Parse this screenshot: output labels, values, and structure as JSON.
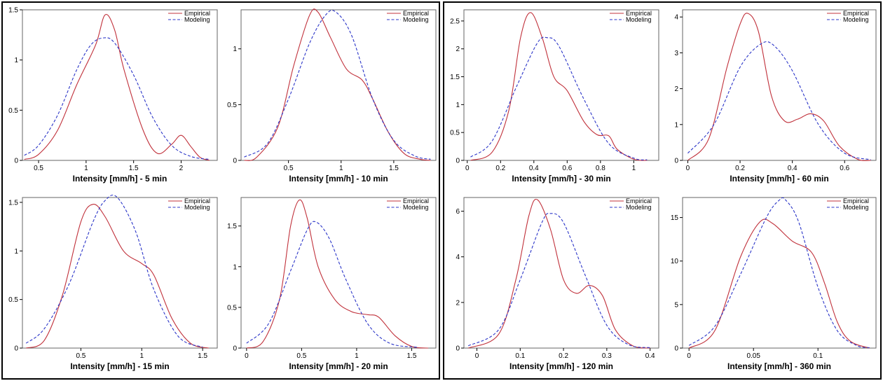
{
  "colors": {
    "empirical": "#c0303a",
    "modeling": "#2b35c8"
  },
  "chart_data": [
    {
      "type": "line",
      "xlabel": "Intensity [mm/h] - 5 min",
      "xlim": [
        0.33,
        2.38
      ],
      "ylim": [
        0,
        1.5
      ],
      "xticks": [
        0.5,
        1,
        1.5,
        2
      ],
      "xtick_labels": [
        "0.5",
        "1",
        "1.5",
        "2"
      ],
      "yticks": [
        0,
        0.5,
        1,
        1.5
      ],
      "ytick_labels": [
        "0",
        "0.5",
        "1",
        "1.5"
      ],
      "series": [
        {
          "name": "Empirical",
          "x": [
            0.35,
            0.5,
            0.7,
            0.9,
            1.1,
            1.2,
            1.3,
            1.4,
            1.6,
            1.75,
            1.9,
            2.0,
            2.1,
            2.2,
            2.3
          ],
          "y": [
            0.01,
            0.06,
            0.3,
            0.75,
            1.15,
            1.45,
            1.3,
            0.9,
            0.3,
            0.07,
            0.16,
            0.25,
            0.14,
            0.03,
            0.0
          ]
        },
        {
          "name": "Modeling",
          "x": [
            0.35,
            0.5,
            0.7,
            0.9,
            1.05,
            1.18,
            1.3,
            1.5,
            1.7,
            1.9,
            2.1,
            2.3
          ],
          "y": [
            0.05,
            0.15,
            0.45,
            0.9,
            1.15,
            1.22,
            1.17,
            0.85,
            0.43,
            0.15,
            0.04,
            0.01
          ]
        }
      ]
    },
    {
      "type": "line",
      "xlabel": "Intensity [mm/h] - 10 min",
      "xlim": [
        0.05,
        1.9
      ],
      "ylim": [
        0,
        1.35
      ],
      "xticks": [
        0.5,
        1,
        1.5
      ],
      "xtick_labels": [
        "0.5",
        "1",
        "1.5"
      ],
      "yticks": [
        0,
        0.5,
        1
      ],
      "ytick_labels": [
        "0",
        "0.5",
        "1"
      ],
      "series": [
        {
          "name": "Empirical",
          "x": [
            0.08,
            0.2,
            0.4,
            0.55,
            0.7,
            0.78,
            0.9,
            1.05,
            1.2,
            1.3,
            1.45,
            1.6,
            1.75,
            1.85
          ],
          "y": [
            0.0,
            0.03,
            0.3,
            0.85,
            1.3,
            1.33,
            1.1,
            0.82,
            0.72,
            0.55,
            0.25,
            0.06,
            0.01,
            0.0
          ]
        },
        {
          "name": "Modeling",
          "x": [
            0.08,
            0.3,
            0.5,
            0.7,
            0.85,
            0.95,
            1.1,
            1.3,
            1.5,
            1.7,
            1.85
          ],
          "y": [
            0.03,
            0.15,
            0.55,
            1.05,
            1.3,
            1.33,
            1.12,
            0.55,
            0.18,
            0.04,
            0.01
          ]
        }
      ]
    },
    {
      "type": "line",
      "xlabel": "Intensity [mm/h] - 15 min",
      "xlim": [
        0.02,
        1.62
      ],
      "ylim": [
        0,
        1.55
      ],
      "xticks": [
        0.5,
        1,
        1.5
      ],
      "xtick_labels": [
        "0.5",
        "1",
        "1.5"
      ],
      "yticks": [
        0,
        0.5,
        1,
        1.5
      ],
      "ytick_labels": [
        "0",
        "0.5",
        "1",
        "1.5"
      ],
      "series": [
        {
          "name": "Empirical",
          "x": [
            0.05,
            0.2,
            0.35,
            0.5,
            0.6,
            0.7,
            0.85,
            1.0,
            1.1,
            1.25,
            1.4,
            1.55
          ],
          "y": [
            0.0,
            0.08,
            0.55,
            1.3,
            1.48,
            1.35,
            1.0,
            0.87,
            0.75,
            0.3,
            0.05,
            0.0
          ]
        },
        {
          "name": "Modeling",
          "x": [
            0.05,
            0.2,
            0.4,
            0.6,
            0.7,
            0.8,
            0.95,
            1.1,
            1.3,
            1.5
          ],
          "y": [
            0.05,
            0.2,
            0.65,
            1.3,
            1.52,
            1.55,
            1.2,
            0.6,
            0.12,
            0.01
          ]
        }
      ]
    },
    {
      "type": "line",
      "xlabel": "Intensity [mm/h] - 20 min",
      "xlim": [
        -0.05,
        1.72
      ],
      "ylim": [
        0,
        1.85
      ],
      "xticks": [
        0,
        0.5,
        1,
        1.5
      ],
      "xtick_labels": [
        "0",
        "0.5",
        "1",
        "1.5"
      ],
      "yticks": [
        0,
        0.5,
        1,
        1.5
      ],
      "ytick_labels": [
        "0",
        "0.5",
        "1",
        "1.5"
      ],
      "series": [
        {
          "name": "Empirical",
          "x": [
            0.0,
            0.15,
            0.3,
            0.4,
            0.48,
            0.55,
            0.65,
            0.8,
            0.95,
            1.1,
            1.2,
            1.35,
            1.5,
            1.65
          ],
          "y": [
            0.0,
            0.08,
            0.6,
            1.5,
            1.82,
            1.6,
            1.0,
            0.6,
            0.45,
            0.41,
            0.38,
            0.15,
            0.02,
            0.0
          ]
        },
        {
          "name": "Modeling",
          "x": [
            0.0,
            0.2,
            0.4,
            0.55,
            0.63,
            0.75,
            0.9,
            1.1,
            1.3,
            1.55
          ],
          "y": [
            0.06,
            0.3,
            0.95,
            1.45,
            1.55,
            1.35,
            0.85,
            0.3,
            0.06,
            0.01
          ]
        }
      ]
    },
    {
      "type": "line",
      "xlabel": "Intensity [mm/h] - 30 min",
      "xlim": [
        -0.02,
        1.15
      ],
      "ylim": [
        0,
        2.7
      ],
      "xticks": [
        0,
        0.2,
        0.4,
        0.6,
        0.8,
        1
      ],
      "xtick_labels": [
        "0",
        "0.2",
        "0.4",
        "0.6",
        "0.8",
        "1"
      ],
      "yticks": [
        0,
        0.5,
        1,
        1.5,
        2,
        2.5
      ],
      "ytick_labels": [
        "0",
        "0.5",
        "1",
        "1.5",
        "2",
        "2.5"
      ],
      "series": [
        {
          "name": "Empirical",
          "x": [
            0.02,
            0.15,
            0.25,
            0.32,
            0.38,
            0.45,
            0.52,
            0.6,
            0.7,
            0.78,
            0.85,
            0.9,
            1.0,
            1.08
          ],
          "y": [
            0.0,
            0.15,
            0.9,
            2.2,
            2.65,
            2.2,
            1.5,
            1.25,
            0.7,
            0.46,
            0.44,
            0.2,
            0.02,
            0.0
          ]
        },
        {
          "name": "Modeling",
          "x": [
            0.02,
            0.15,
            0.3,
            0.42,
            0.48,
            0.55,
            0.7,
            0.85,
            1.0,
            1.08
          ],
          "y": [
            0.06,
            0.35,
            1.35,
            2.1,
            2.2,
            2.05,
            1.1,
            0.3,
            0.04,
            0.01
          ]
        }
      ]
    },
    {
      "type": "line",
      "xlabel": "Intensity [mm/h] - 60 min",
      "xlim": [
        -0.02,
        0.72
      ],
      "ylim": [
        0,
        4.2
      ],
      "xticks": [
        0,
        0.2,
        0.4,
        0.6
      ],
      "xtick_labels": [
        "0",
        "0.2",
        "0.4",
        "0.6"
      ],
      "yticks": [
        0,
        1,
        2,
        3,
        4
      ],
      "ytick_labels": [
        "0",
        "1",
        "2",
        "3",
        "4"
      ],
      "series": [
        {
          "name": "Empirical",
          "x": [
            0.0,
            0.08,
            0.15,
            0.2,
            0.23,
            0.27,
            0.32,
            0.37,
            0.42,
            0.47,
            0.52,
            0.58,
            0.65,
            0.7
          ],
          "y": [
            0.0,
            0.6,
            2.6,
            3.8,
            4.1,
            3.6,
            1.8,
            1.1,
            1.15,
            1.3,
            1.1,
            0.4,
            0.03,
            0.0
          ]
        },
        {
          "name": "Modeling",
          "x": [
            0.0,
            0.1,
            0.2,
            0.28,
            0.33,
            0.4,
            0.5,
            0.6,
            0.7
          ],
          "y": [
            0.2,
            1.0,
            2.6,
            3.25,
            3.2,
            2.5,
            1.0,
            0.2,
            0.02
          ]
        }
      ]
    },
    {
      "type": "line",
      "xlabel": "Intensity [mm/h] - 120 min",
      "xlim": [
        -0.03,
        0.42
      ],
      "ylim": [
        0,
        6.6
      ],
      "xticks": [
        0,
        0.1,
        0.2,
        0.3,
        0.4
      ],
      "xtick_labels": [
        "0",
        "0.1",
        "0.2",
        "0.3",
        "0.4"
      ],
      "yticks": [
        0,
        2,
        4,
        6
      ],
      "ytick_labels": [
        "0",
        "2",
        "4",
        "6"
      ],
      "series": [
        {
          "name": "Empirical",
          "x": [
            -0.02,
            0.05,
            0.09,
            0.12,
            0.14,
            0.17,
            0.2,
            0.23,
            0.26,
            0.29,
            0.32,
            0.36,
            0.4
          ],
          "y": [
            0.0,
            0.6,
            3.0,
            5.8,
            6.5,
            5.2,
            3.0,
            2.4,
            2.75,
            2.3,
            0.8,
            0.1,
            0.0
          ]
        },
        {
          "name": "Modeling",
          "x": [
            -0.02,
            0.05,
            0.1,
            0.15,
            0.17,
            0.2,
            0.25,
            0.3,
            0.35,
            0.4
          ],
          "y": [
            0.1,
            0.8,
            3.0,
            5.5,
            5.9,
            5.5,
            3.2,
            1.0,
            0.15,
            0.02
          ]
        }
      ]
    },
    {
      "type": "line",
      "xlabel": "Intensity [mm/h] - 360 min",
      "xlim": [
        -0.005,
        0.145
      ],
      "ylim": [
        0,
        17.3
      ],
      "xticks": [
        0,
        0.05,
        0.1
      ],
      "xtick_labels": [
        "0",
        "0.05",
        "0.1"
      ],
      "yticks": [
        0,
        5,
        10,
        15
      ],
      "ytick_labels": [
        "0",
        "5",
        "10",
        "15"
      ],
      "series": [
        {
          "name": "Empirical",
          "x": [
            0.0,
            0.02,
            0.04,
            0.055,
            0.065,
            0.08,
            0.095,
            0.105,
            0.115,
            0.125,
            0.14
          ],
          "y": [
            0.0,
            2.0,
            10.5,
            14.5,
            14.3,
            12.3,
            11.0,
            7.5,
            3.0,
            0.8,
            0.0
          ]
        },
        {
          "name": "Modeling",
          "x": [
            0.0,
            0.02,
            0.04,
            0.06,
            0.07,
            0.075,
            0.085,
            0.1,
            0.115,
            0.13,
            0.14
          ],
          "y": [
            0.3,
            2.5,
            8.5,
            15.0,
            17.0,
            17.0,
            14.5,
            7.0,
            2.0,
            0.3,
            0.05
          ]
        }
      ]
    }
  ]
}
